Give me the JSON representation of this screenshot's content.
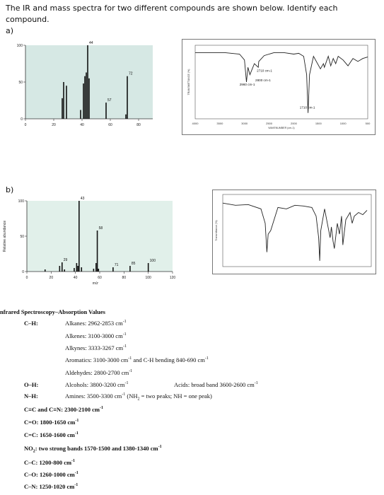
{
  "question": {
    "line1": "The IR and mass spectra for two different compounds are shown below. Identify each",
    "line2": "compound.",
    "part_a": "a)",
    "part_b": "b)"
  },
  "chart_data": [
    {
      "type": "bar",
      "title": "",
      "xlabel": "",
      "ylabel": "",
      "xlim": [
        0,
        90
      ],
      "ylim": [
        0,
        100
      ],
      "xticks": [
        "0",
        "20",
        "40",
        "60",
        "80"
      ],
      "yticks": [
        "0",
        "50",
        "100"
      ],
      "x": [
        26,
        27,
        29,
        39,
        41,
        42,
        43,
        44,
        45,
        57,
        71,
        72
      ],
      "values": [
        28,
        50,
        45,
        12,
        48,
        58,
        63,
        100,
        55,
        22,
        6,
        58
      ],
      "data_labels": {
        "44": "44",
        "72": "72",
        "57": "57"
      }
    },
    {
      "type": "line",
      "title": "",
      "xlabel": "WAVENUMBER (cm-1)",
      "ylabel": "TRANSMITTANCE (%)",
      "annotations": [
        "2960 cm-1",
        "2710 cm-1",
        "2800 cm-1",
        "1710 cm-1"
      ],
      "xticks": [
        "4000",
        "3500",
        "3000",
        "2500",
        "2000",
        "1500",
        "1000",
        "500"
      ],
      "x": [
        4000,
        3700,
        3400,
        3100,
        3000,
        2960,
        2930,
        2890,
        2800,
        2720,
        2710,
        2600,
        2400,
        2200,
        2000,
        1900,
        1800,
        1740,
        1710,
        1680,
        1600,
        1460,
        1400,
        1380,
        1300,
        1250,
        1200,
        1150,
        1100,
        1000,
        900,
        800,
        700,
        600,
        500
      ],
      "y": [
        90,
        90,
        90,
        88,
        80,
        50,
        70,
        60,
        75,
        70,
        78,
        86,
        90,
        90,
        88,
        89,
        85,
        60,
        8,
        60,
        85,
        68,
        75,
        70,
        85,
        72,
        82,
        75,
        85,
        80,
        72,
        82,
        78,
        82,
        84
      ]
    },
    {
      "type": "bar",
      "title": "",
      "xlabel": "m/z",
      "ylabel": "Relative abundance",
      "xlim": [
        0,
        120
      ],
      "ylim": [
        0,
        100
      ],
      "xticks": [
        "0",
        "20",
        "40",
        "60",
        "80",
        "100",
        "120"
      ],
      "yticks": [
        "0",
        "50",
        "100"
      ],
      "x": [
        15,
        27,
        29,
        31,
        39,
        41,
        42,
        43,
        45,
        55,
        57,
        58,
        59,
        71,
        85,
        100
      ],
      "values": [
        3,
        8,
        13,
        3,
        5,
        12,
        8,
        100,
        6,
        4,
        12,
        58,
        4,
        6,
        8,
        12
      ],
      "data_labels": {
        "43": "43",
        "58": "58",
        "29": "29",
        "71": "71",
        "85": "85",
        "100": "100"
      }
    },
    {
      "type": "line",
      "title": "",
      "xlabel": "",
      "ylabel": "Transmittance (%)",
      "x": [
        4000,
        3700,
        3400,
        3100,
        3000,
        2960,
        2930,
        2870,
        2700,
        2500,
        2300,
        2100,
        1900,
        1800,
        1740,
        1715,
        1690,
        1600,
        1470,
        1440,
        1400,
        1370,
        1300,
        1250,
        1200,
        1170,
        1100,
        1000,
        950,
        900,
        800,
        700,
        600
      ],
      "y": [
        88,
        85,
        86,
        80,
        60,
        20,
        45,
        50,
        82,
        80,
        85,
        84,
        82,
        70,
        40,
        8,
        50,
        80,
        40,
        55,
        35,
        25,
        60,
        45,
        70,
        30,
        65,
        75,
        60,
        70,
        75,
        72,
        78
      ]
    }
  ],
  "ir_table": {
    "heading": "nfrared Spectroscopy–Absorption Values",
    "ch_label": "C–H:",
    "ch_items": [
      "Alkanes: 2962-2853 cm",
      "Alkenes: 3100-3000 cm",
      "Alkynes: 3333-3267 cm",
      "Aromatics: 3100-3000 cm",
      "Aldehydes: 2800-2700 cm"
    ],
    "aromatic_extra": " and C-H bending 840-690 cm",
    "oh_label": "O–H:",
    "oh_item": "Alcohols: 3800-3200 cm",
    "acids": "Acids: broad band 3600-2600 cm",
    "nh_label": "N–H:",
    "nh_item": "Amines: 3500-3300 cm",
    "nh_extra_a": " (NH",
    "nh_extra_sub": "2",
    "nh_extra_b": " = two peaks; NH = one peak)",
    "triple": "C≡C and C≡N: 2300-2100 cm",
    "co": "C=O: 1800-1650 cm",
    "cc": "C=C: 1650-1600 cm",
    "no2_a": "NO",
    "no2_sub": "2",
    "no2_b": ": two strong bands 1570-1500 and 1380-1340 cm",
    "c_c": "C–C: 1200-800 cm",
    "c_o": "C–O: 1260-1000 cm",
    "c_n": "C–N: 1250-1020 cm",
    "sup": "-1"
  }
}
